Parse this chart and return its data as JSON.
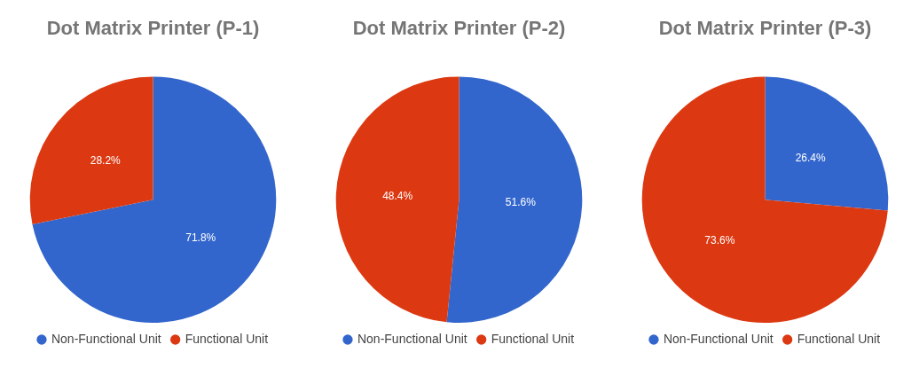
{
  "chart_data": [
    {
      "type": "pie",
      "title": "Dot Matrix Printer (P-1)",
      "categories": [
        "Non-Functional Unit",
        "Functional Unit"
      ],
      "values": [
        71.8,
        28.2
      ],
      "colors": [
        "#3366cc",
        "#dc3912"
      ],
      "value_labels": [
        "71.8%",
        "28.2%"
      ],
      "legend": "bottom"
    },
    {
      "type": "pie",
      "title": "Dot Matrix Printer (P-2)",
      "categories": [
        "Non-Functional Unit",
        "Functional Unit"
      ],
      "values": [
        51.6,
        48.4
      ],
      "colors": [
        "#3366cc",
        "#dc3912"
      ],
      "value_labels": [
        "51.6%",
        "48.4%"
      ],
      "legend": "bottom"
    },
    {
      "type": "pie",
      "title": "Dot Matrix Printer (P-3)",
      "categories": [
        "Non-Functional Unit",
        "Functional Unit"
      ],
      "values": [
        26.4,
        73.6
      ],
      "colors": [
        "#3366cc",
        "#dc3912"
      ],
      "value_labels": [
        "26.4%",
        "73.6%"
      ],
      "legend": "bottom"
    }
  ]
}
